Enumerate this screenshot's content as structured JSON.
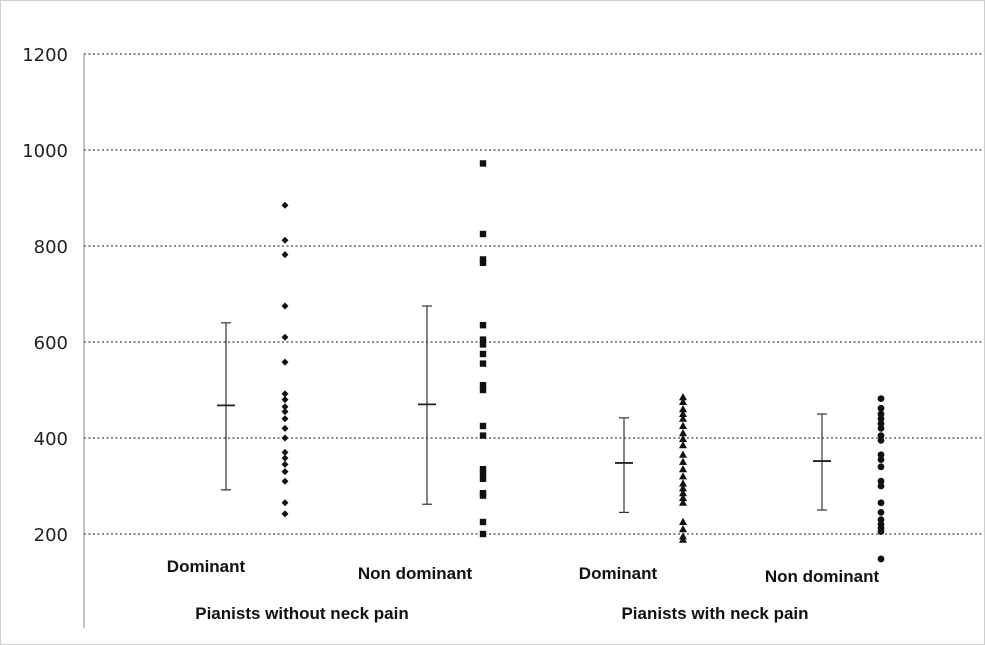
{
  "chart_data": {
    "type": "scatter",
    "title": "",
    "xlabel": "",
    "ylabel": "",
    "ylim": [
      0,
      1200
    ],
    "yticks": [
      200,
      400,
      600,
      800,
      1000,
      1200
    ],
    "grid": true,
    "gridlines": [
      200,
      400,
      600,
      800,
      1000,
      1200
    ],
    "groups": [
      "Pianists without neck pain",
      "Pianists with neck pain"
    ],
    "categories": [
      "Dominant",
      "Non dominant",
      "Dominant",
      "Non dominant"
    ],
    "series": [
      {
        "group": "Pianists without neck pain",
        "category": "Dominant",
        "marker": "diamond",
        "mean": 468,
        "lower": 292,
        "upper": 640,
        "values": [
          885,
          812,
          782,
          675,
          610,
          558,
          492,
          480,
          465,
          455,
          440,
          420,
          400,
          370,
          358,
          345,
          330,
          310,
          265,
          242
        ]
      },
      {
        "group": "Pianists without neck pain",
        "category": "Non dominant",
        "marker": "square",
        "mean": 470,
        "lower": 262,
        "upper": 675,
        "values": [
          972,
          825,
          772,
          765,
          635,
          605,
          595,
          575,
          555,
          510,
          500,
          425,
          405,
          335,
          325,
          315,
          285,
          280,
          225,
          200
        ]
      },
      {
        "group": "Pianists with neck pain",
        "category": "Dominant",
        "marker": "triangle",
        "mean": 348,
        "lower": 245,
        "upper": 442,
        "values": [
          485,
          475,
          460,
          450,
          440,
          425,
          410,
          398,
          385,
          365,
          350,
          335,
          320,
          305,
          295,
          285,
          275,
          265,
          225,
          210,
          195,
          188
        ]
      },
      {
        "group": "Pianists with neck pain",
        "category": "Non dominant",
        "marker": "circle",
        "mean": 352,
        "lower": 250,
        "upper": 450,
        "values": [
          482,
          462,
          450,
          440,
          430,
          420,
          405,
          395,
          365,
          355,
          340,
          310,
          300,
          265,
          245,
          230,
          220,
          212,
          205,
          148
        ]
      }
    ]
  }
}
